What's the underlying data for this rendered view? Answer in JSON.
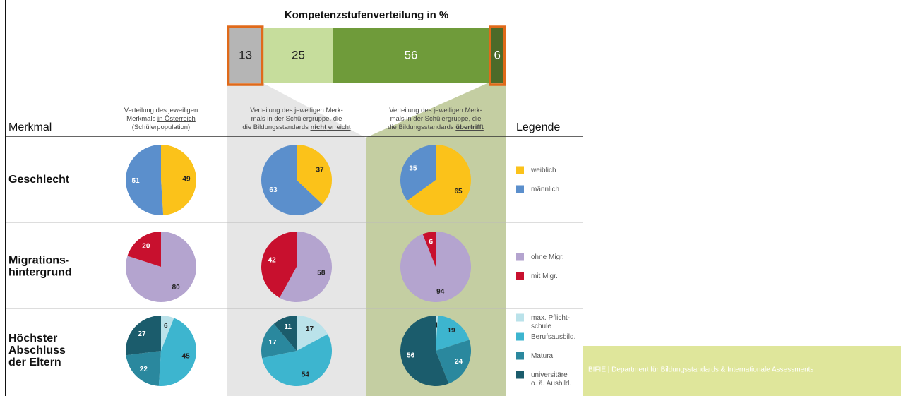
{
  "title": "Kompetenzstufenverteilung in %",
  "levels": {
    "type": "bar",
    "values": [
      13,
      25,
      56,
      6
    ],
    "colors": [
      "#b5b5b5",
      "#c6dd9c",
      "#6f9b3a",
      "#4d6a29"
    ],
    "highlight": [
      0,
      3
    ],
    "highlight_color": "#e06a1a"
  },
  "header": {
    "merkmal": "Merkmal",
    "legend": "Legende",
    "columns": [
      [
        [
          {
            "text": "Verteilung des jeweiligen"
          }
        ],
        [
          {
            "text": "Merkmals "
          },
          {
            "text": "in Österreich",
            "style": "underline"
          }
        ],
        [
          {
            "text": "(Schülerpopulation)"
          }
        ]
      ],
      [
        [
          {
            "text": "Verteilung des jeweiligen Merk-"
          }
        ],
        [
          {
            "text": "mals in der Schülergruppe, die"
          }
        ],
        [
          {
            "text": "die Bildungsstandards "
          },
          {
            "text": "nicht",
            "style": "bold-underline"
          },
          {
            "text": " erreicht",
            "style": "underline"
          }
        ]
      ],
      [
        [
          {
            "text": "Verteilung des jeweiligen Merk-"
          }
        ],
        [
          {
            "text": "mals in der Schülergruppe, die"
          }
        ],
        [
          {
            "text": "die Bildungsstandards "
          },
          {
            "text": "übertrifft",
            "style": "bold-underline"
          }
        ]
      ]
    ]
  },
  "rows": [
    {
      "label": [
        "Geschlecht"
      ],
      "categories": [
        [
          "weiblich"
        ],
        [
          "männlich"
        ]
      ],
      "colors": [
        "#fbc21a",
        "#5b8fcc"
      ],
      "pies": [
        {
          "type": "pie",
          "values": [
            49,
            51
          ]
        },
        {
          "type": "pie",
          "values": [
            37,
            63
          ]
        },
        {
          "type": "pie",
          "values": [
            65,
            35
          ]
        }
      ]
    },
    {
      "label": [
        "Migrations-",
        "hintergrund"
      ],
      "categories": [
        [
          "ohne Migr."
        ],
        [
          "mit Migr."
        ]
      ],
      "colors": [
        "#b4a4cf",
        "#c8102e"
      ],
      "pies": [
        {
          "type": "pie",
          "values": [
            80,
            20
          ]
        },
        {
          "type": "pie",
          "values": [
            58,
            42
          ]
        },
        {
          "type": "pie",
          "values": [
            94,
            6
          ]
        }
      ]
    },
    {
      "label": [
        "Höchster",
        "Abschluss",
        "der Eltern"
      ],
      "categories": [
        [
          "max. Pflicht-",
          "schule"
        ],
        [
          "Berufsausbild."
        ],
        [
          "Matura"
        ],
        [
          "universitäre",
          "o. ä. Ausbild."
        ]
      ],
      "colors": [
        "#bae2ea",
        "#3db5cf",
        "#2a889e",
        "#1b5c6c"
      ],
      "pies": [
        {
          "type": "pie",
          "values": [
            6,
            45,
            22,
            27
          ]
        },
        {
          "type": "pie",
          "values": [
            17,
            54,
            17,
            11
          ]
        },
        {
          "type": "pie",
          "values": [
            1,
            19,
            24,
            56
          ]
        }
      ]
    }
  ],
  "footer": "BIFIE | Department für Bildungsstandards & Internationale Assessments"
}
